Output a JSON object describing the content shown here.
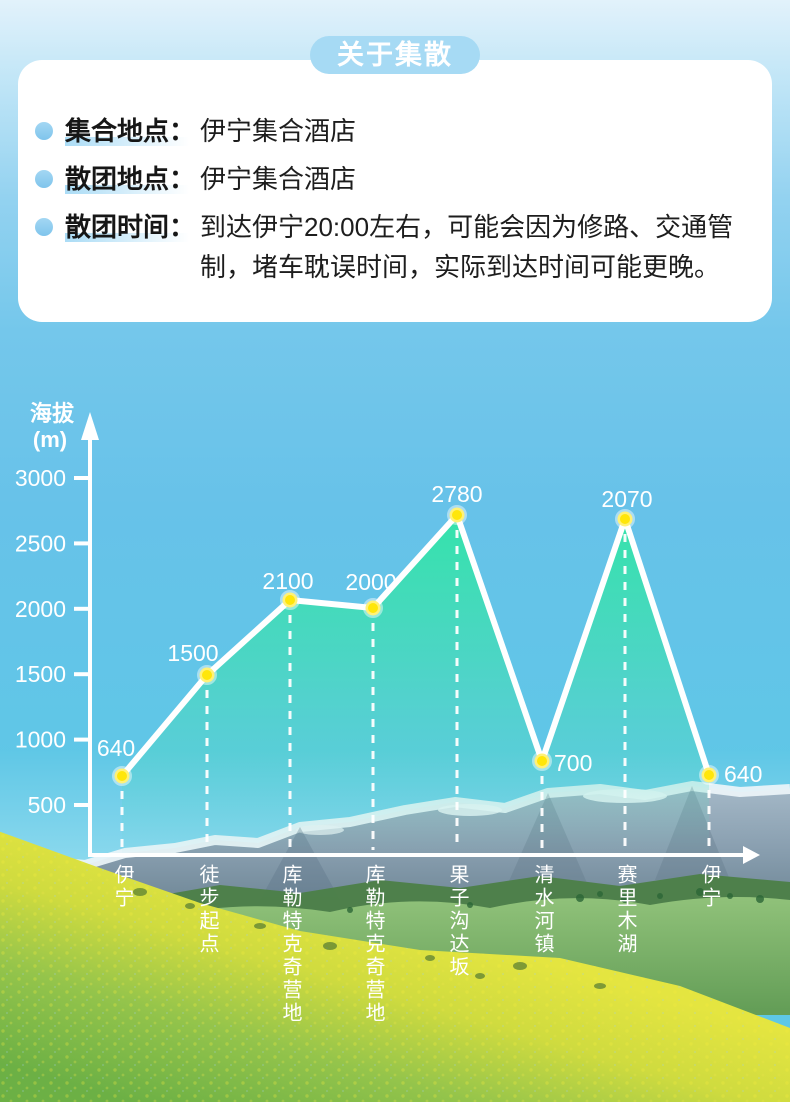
{
  "header": {
    "title": "关于集散"
  },
  "info_card": {
    "items": [
      {
        "label": "集合地点：",
        "value": "伊宁集合酒店"
      },
      {
        "label": "散团地点：",
        "value": "伊宁集合酒店"
      },
      {
        "label": "散团时间：",
        "value": "到达伊宁20:00左右，可能会因为修路、交通管制，堵车耽误时间，实际到达时间可能更晚。"
      }
    ]
  },
  "chart_data": {
    "type": "area",
    "title": "",
    "ylabel": "海拔",
    "ylabel_unit": "(m)",
    "xlabel": "",
    "ylim": [
      0,
      3200
    ],
    "grid": "off",
    "legend": "none",
    "yticks": [
      "3000",
      "2500",
      "2000",
      "1500",
      "1000",
      "500"
    ],
    "categories": [
      "伊宁",
      "徒步起点",
      "库勒特克奇营地",
      "库勒特克奇营地",
      "果子沟达坂",
      "清水河镇",
      "赛里木湖",
      "伊宁"
    ],
    "values": [
      640,
      1500,
      2100,
      2000,
      2780,
      700,
      2070,
      640
    ],
    "value_labels": [
      "640",
      "1500",
      "2100",
      "2000",
      "2780",
      "700",
      "2070",
      "640"
    ],
    "colors": {
      "line": "#ffffff",
      "point_fill": "#ffe60a",
      "point_ring": "#bfe3f2",
      "area_top": "#2de7a3",
      "axis": "#ffffff",
      "text": "#ffffff"
    }
  }
}
